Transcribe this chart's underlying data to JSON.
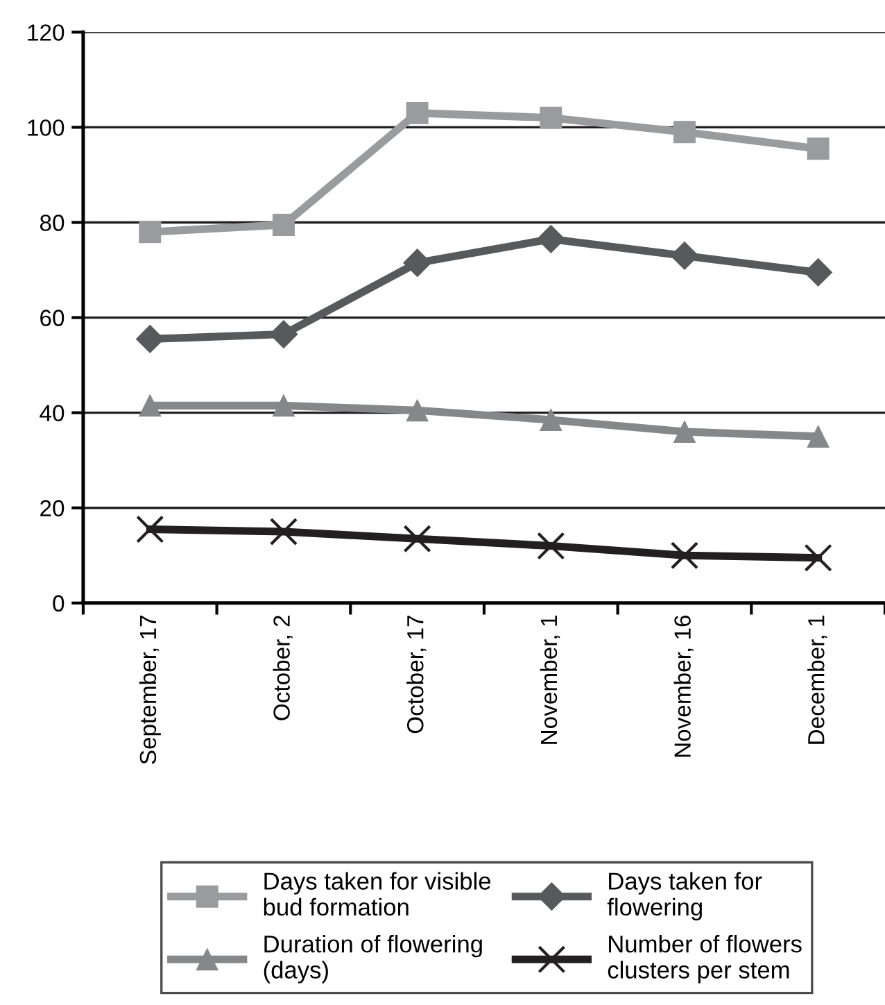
{
  "chart_data": {
    "type": "line",
    "categories": [
      "September, 17",
      "October, 2",
      "October, 17",
      "November, 1",
      "November, 16",
      "December, 1"
    ],
    "series": [
      {
        "name": "Days taken for visible\nbud formation",
        "color": "#9a9b9d",
        "marker": "square",
        "values": [
          78,
          79.5,
          103,
          102,
          99,
          95.5
        ]
      },
      {
        "name": "Days taken for\nflowering",
        "color": "#58595b",
        "marker": "diamond",
        "values": [
          55.5,
          56.5,
          71.5,
          76.5,
          73,
          69.5
        ]
      },
      {
        "name": "Duration of flowering\n(days)",
        "color": "#868789",
        "marker": "triangle",
        "values": [
          41.5,
          41.5,
          40.5,
          38.5,
          36,
          35
        ]
      },
      {
        "name": "Number of flowers\nclusters per stem",
        "color": "#231f20",
        "marker": "cross",
        "values": [
          15.5,
          15,
          13.5,
          12,
          10,
          9.5
        ]
      }
    ],
    "ylim": [
      0,
      120
    ],
    "yticks": [
      0,
      20,
      40,
      60,
      80,
      100,
      120
    ],
    "grid": "y",
    "legend": "bottom",
    "line_style": "solid"
  }
}
